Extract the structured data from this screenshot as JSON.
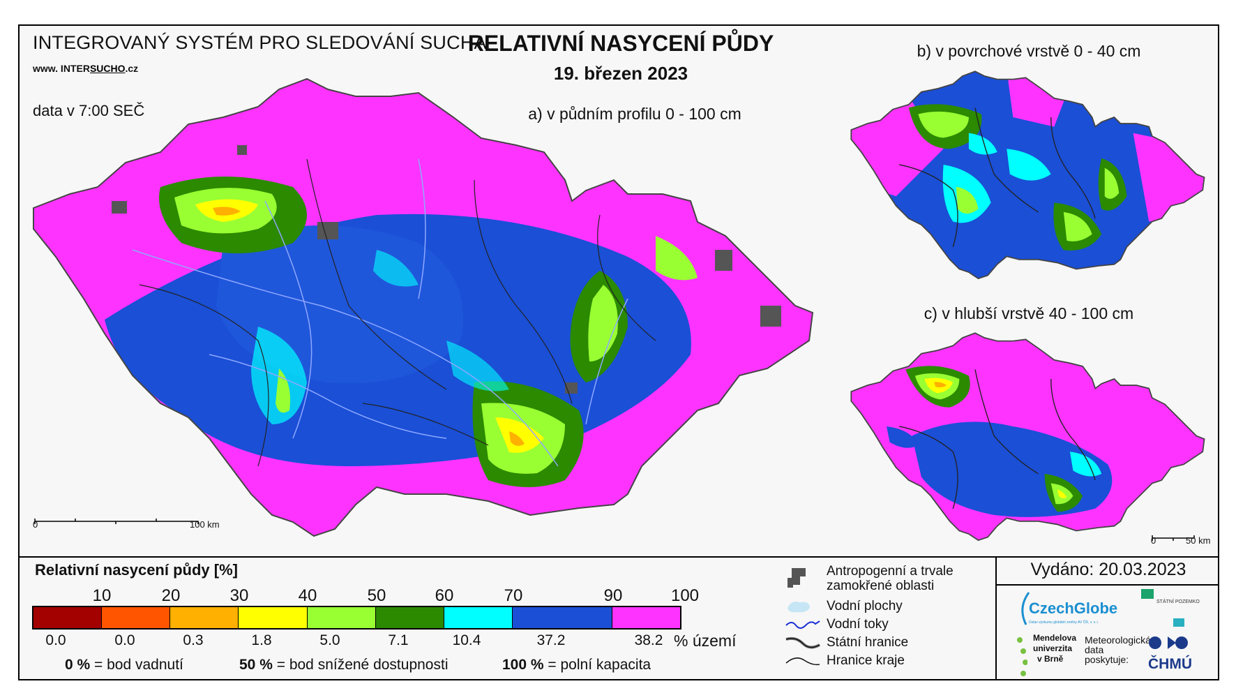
{
  "header": {
    "system_title": "INTEGROVANÝ SYSTÉM PRO SLEDOVÁNÍ SUCHA",
    "url_prefix": "www. INTER",
    "url_brand": "SUCHO",
    "url_suffix": ".cz",
    "data_time": "data v 7:00 SEČ",
    "main_title": "RELATIVNÍ NASYCENÍ PŮDY",
    "date": "19. březen 2023"
  },
  "maps": {
    "a_label": "a) v půdním profilu 0 - 100 cm",
    "b_label": "b) v povrchové vrstvě 0 - 40 cm",
    "c_label": "c) v hlubší vrstvě 40 - 100 cm",
    "scale_main": {
      "start": "0",
      "end": "100 km"
    },
    "scale_small": {
      "start": "0",
      "end": "50 km"
    }
  },
  "legend": {
    "title": "Relativní nasycení půdy [%]",
    "ticks": [
      "10",
      "20",
      "30",
      "40",
      "50",
      "60",
      "70",
      "90",
      "100"
    ],
    "colors": [
      "#a30000",
      "#ff5500",
      "#ffb000",
      "#ffff00",
      "#99ff33",
      "#2b8a00",
      "#00ffff",
      "#1a4fd6",
      "#ff33ff"
    ],
    "percentages": [
      "0.0",
      "0.0",
      "0.3",
      "1.8",
      "5.0",
      "7.1",
      "10.4",
      "37.2",
      "38.2"
    ],
    "pct_unit": "% území",
    "notes": [
      {
        "value": "0 %",
        "text": "= bod vadnutí"
      },
      {
        "value": "50 %",
        "text": "= bod snížené dostupnosti"
      },
      {
        "value": "100 %",
        "text": "= polní kapacita"
      }
    ],
    "symbols": {
      "anthropogenic": "Antropogenní a trvale zamokřené oblasti",
      "water_areas": "Vodní plochy",
      "streams": "Vodní toky",
      "state_border": "Státní hranice",
      "region_border": "Hranice kraje"
    }
  },
  "footer": {
    "issued": "Vydáno: 20.03.2023",
    "czechglobe": "CzechGlobe",
    "czechglobe_sub": "Ústav výzkumu globální změny AV ČR, v. v. i.",
    "spu": "STÁTNÍ POZEMKOVÝ ÚŘAD",
    "mendel_1": "Mendelova",
    "mendel_2": "univerzita",
    "mendel_3": "v Brně",
    "meteo_1": "Meteorologická",
    "meteo_2": "data",
    "meteo_3": "poskytuje:",
    "chmu": "ČHMÚ"
  }
}
